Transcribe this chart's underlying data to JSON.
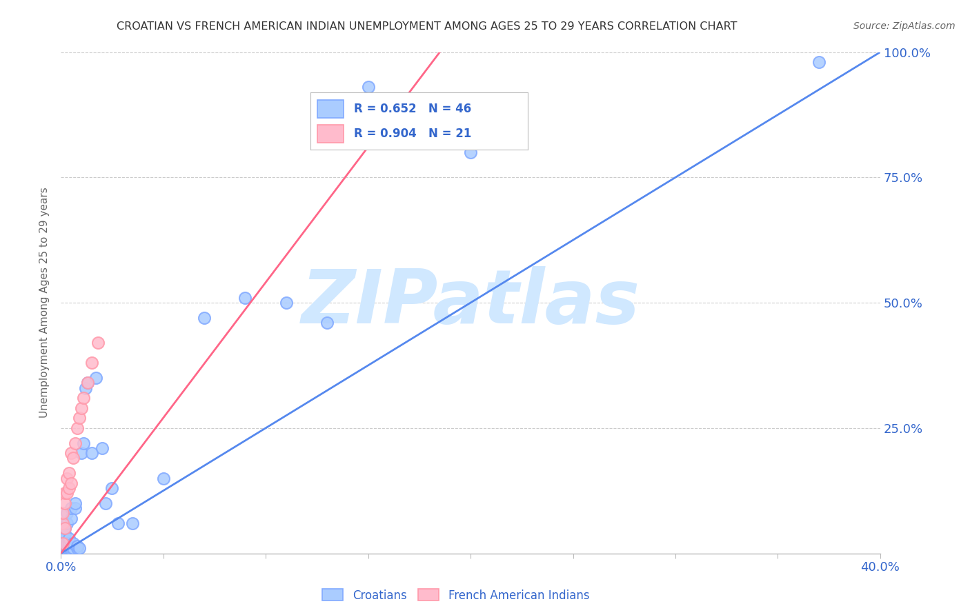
{
  "title": "CROATIAN VS FRENCH AMERICAN INDIAN UNEMPLOYMENT AMONG AGES 25 TO 29 YEARS CORRELATION CHART",
  "source": "Source: ZipAtlas.com",
  "ylabel": "Unemployment Among Ages 25 to 29 years",
  "xlim": [
    0,
    0.4
  ],
  "ylim": [
    0,
    1.0
  ],
  "xticks": [
    0.0,
    0.05,
    0.1,
    0.15,
    0.2,
    0.25,
    0.3,
    0.35,
    0.4
  ],
  "xtick_labels": [
    "0.0%",
    "",
    "",
    "",
    "",
    "",
    "",
    "",
    "40.0%"
  ],
  "yticks": [
    0.0,
    0.25,
    0.5,
    0.75,
    1.0
  ],
  "ytick_labels": [
    "",
    "25.0%",
    "50.0%",
    "75.0%",
    "100.0%"
  ],
  "croatian_R": 0.652,
  "croatian_N": 46,
  "french_R": 0.904,
  "french_N": 21,
  "blue_color": "#82AAFF",
  "pink_color": "#FF99AA",
  "blue_fill": "#AACCFF",
  "pink_fill": "#FFBBCC",
  "line_blue": "#5588EE",
  "line_pink": "#FF6688",
  "legend_text_color": "#3366CC",
  "title_color": "#333333",
  "ylabel_color": "#666666",
  "watermark": "ZIPatlas",
  "watermark_color": "#D0E8FF",
  "croatian_x": [
    0.001,
    0.001,
    0.001,
    0.001,
    0.002,
    0.002,
    0.002,
    0.002,
    0.002,
    0.003,
    0.003,
    0.003,
    0.003,
    0.004,
    0.004,
    0.004,
    0.005,
    0.005,
    0.005,
    0.005,
    0.006,
    0.006,
    0.007,
    0.007,
    0.008,
    0.008,
    0.009,
    0.01,
    0.011,
    0.012,
    0.013,
    0.015,
    0.017,
    0.02,
    0.022,
    0.025,
    0.028,
    0.035,
    0.05,
    0.07,
    0.09,
    0.11,
    0.13,
    0.15,
    0.2,
    0.37
  ],
  "croatian_y": [
    0.025,
    0.035,
    0.05,
    0.06,
    0.01,
    0.02,
    0.03,
    0.04,
    0.05,
    0.01,
    0.02,
    0.06,
    0.08,
    0.01,
    0.02,
    0.03,
    0.008,
    0.012,
    0.07,
    0.09,
    0.01,
    0.02,
    0.09,
    0.1,
    0.01,
    0.015,
    0.01,
    0.2,
    0.22,
    0.33,
    0.34,
    0.2,
    0.35,
    0.21,
    0.1,
    0.13,
    0.06,
    0.06,
    0.15,
    0.47,
    0.51,
    0.5,
    0.46,
    0.93,
    0.8,
    0.98
  ],
  "french_x": [
    0.001,
    0.001,
    0.001,
    0.002,
    0.002,
    0.002,
    0.003,
    0.003,
    0.004,
    0.004,
    0.005,
    0.005,
    0.006,
    0.007,
    0.008,
    0.009,
    0.01,
    0.011,
    0.013,
    0.015,
    0.018
  ],
  "french_y": [
    0.02,
    0.06,
    0.08,
    0.05,
    0.1,
    0.12,
    0.12,
    0.15,
    0.13,
    0.16,
    0.14,
    0.2,
    0.19,
    0.22,
    0.25,
    0.27,
    0.29,
    0.31,
    0.34,
    0.38,
    0.42
  ],
  "blue_trend_x0": 0.0,
  "blue_trend_y0": 0.0,
  "blue_trend_x1": 0.4,
  "blue_trend_y1": 1.0,
  "pink_trend_x0": 0.0,
  "pink_trend_y0": 0.0,
  "pink_trend_x1": 0.185,
  "pink_trend_y1": 1.0
}
